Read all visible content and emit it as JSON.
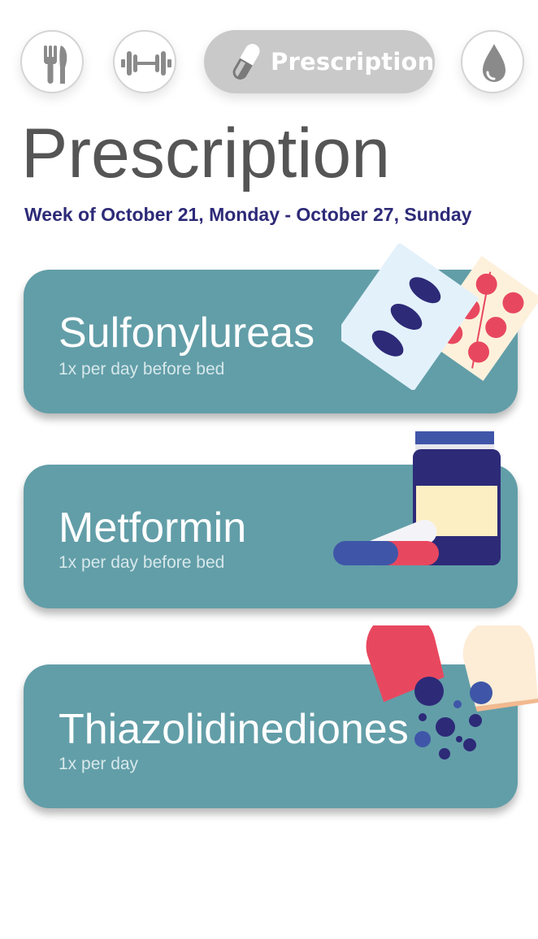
{
  "nav": {
    "items": [
      {
        "name": "food",
        "icon": "fork-knife-icon"
      },
      {
        "name": "exercise",
        "icon": "dumbbell-icon"
      },
      {
        "name": "prescription",
        "icon": "pill-icon",
        "label": "Prescription",
        "active": true
      },
      {
        "name": "blood-glucose",
        "icon": "droplet-icon"
      }
    ]
  },
  "page": {
    "title": "Prescription",
    "week": "Week of October 21, Monday - October 27, Sunday"
  },
  "prescriptions": [
    {
      "name": "Sulfonylureas",
      "frequency": "1x per day before bed",
      "illustration": "blister-packs-illustration"
    },
    {
      "name": "Metformin",
      "frequency": "1x per day before bed",
      "illustration": "pill-bottle-illustration"
    },
    {
      "name": "Thiazolidinediones",
      "frequency": "1x per day",
      "illustration": "open-capsule-illustration"
    }
  ],
  "colors": {
    "card": "#629ea8",
    "accent": "#2d2a78",
    "pill_red": "#e8485f",
    "nav_active": "#c9c9c9",
    "icon_gray": "#8a8a8a"
  }
}
